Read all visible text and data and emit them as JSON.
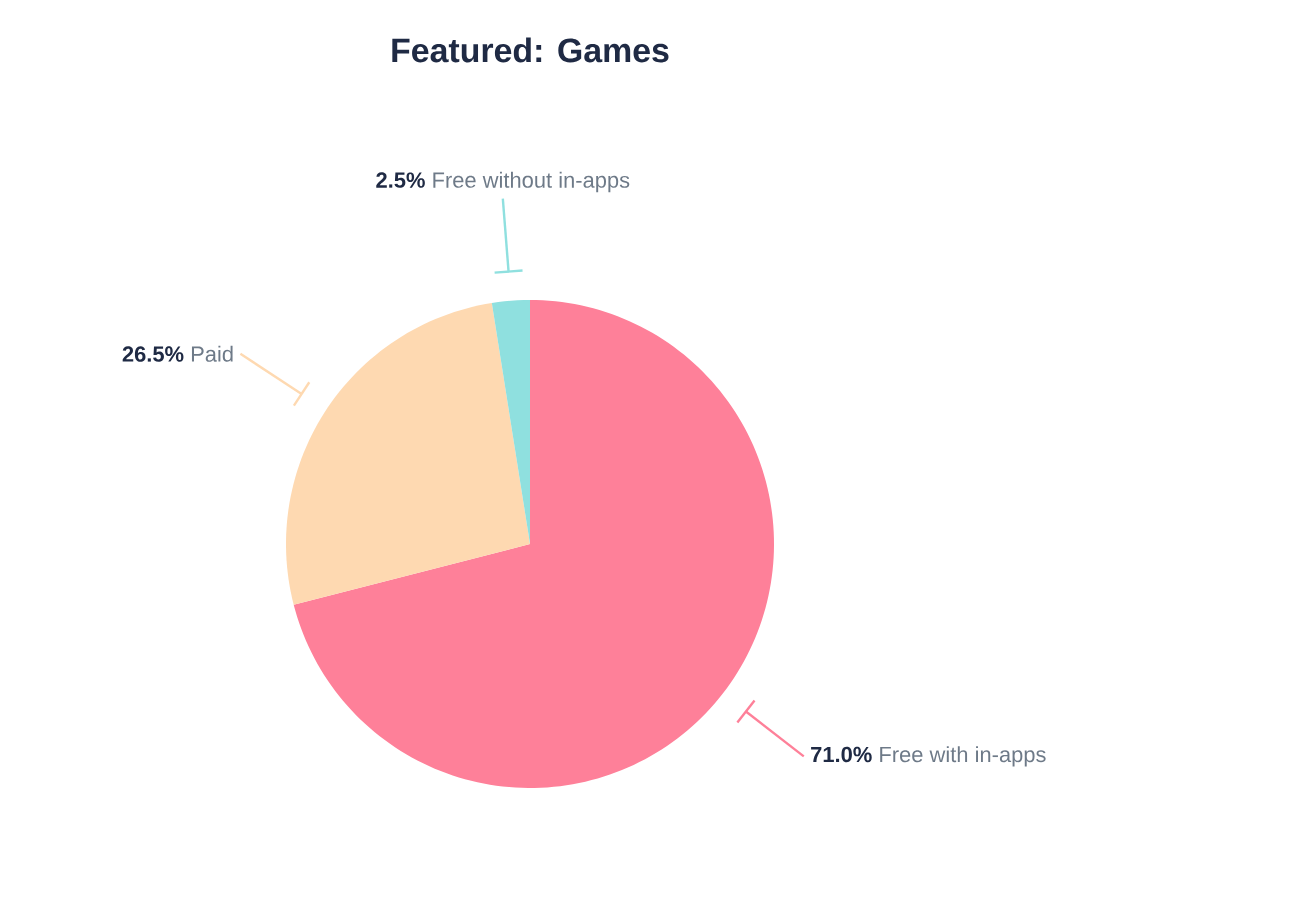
{
  "chart_data": {
    "type": "pie",
    "title": "Featured: Games",
    "categories": [
      "Free with in-apps",
      "Paid",
      "Free without in-apps"
    ],
    "values": [
      71.0,
      26.5,
      2.5
    ],
    "colors": [
      "#fe8099",
      "#fed9b1",
      "#8fe0df"
    ],
    "value_labels": [
      "71.0%",
      "26.5%",
      "2.5%"
    ]
  }
}
